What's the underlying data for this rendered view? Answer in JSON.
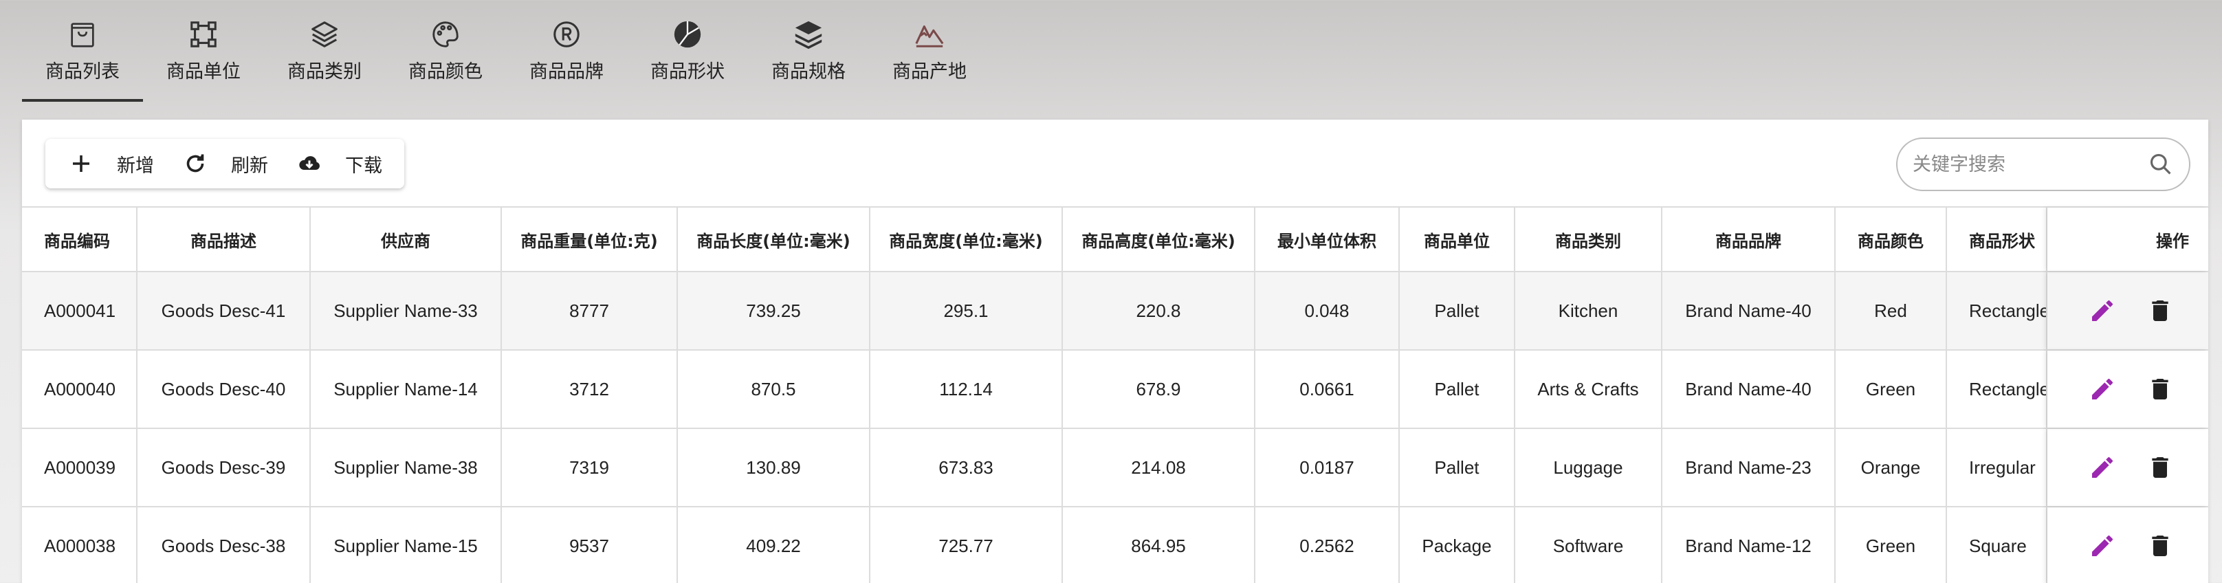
{
  "tabs": [
    {
      "label": "商品列表",
      "icon": "shopping-bag-icon",
      "active": true
    },
    {
      "label": "商品单位",
      "icon": "nodes-icon"
    },
    {
      "label": "商品类别",
      "icon": "layers-icon"
    },
    {
      "label": "商品颜色",
      "icon": "palette-icon"
    },
    {
      "label": "商品品牌",
      "icon": "registered-icon"
    },
    {
      "label": "商品形状",
      "icon": "pie-chart-icon"
    },
    {
      "label": "商品规格",
      "icon": "stack-icon"
    },
    {
      "label": "商品产地",
      "icon": "mountains-icon"
    }
  ],
  "toolbar": {
    "add_label": "新增",
    "refresh_label": "刷新",
    "download_label": "下载"
  },
  "search": {
    "placeholder": "关键字搜索"
  },
  "table": {
    "headers": [
      "商品编码",
      "商品描述",
      "供应商",
      "商品重量(单位:克)",
      "商品长度(单位:毫米)",
      "商品宽度(单位:毫米)",
      "商品高度(单位:毫米)",
      "最小单位体积",
      "商品单位",
      "商品类别",
      "商品品牌",
      "商品颜色",
      "商品形状",
      "操作"
    ],
    "rows": [
      [
        "A000041",
        "Goods Desc-41",
        "Supplier Name-33",
        "8777",
        "739.25",
        "295.1",
        "220.8",
        "0.048",
        "Pallet",
        "Kitchen",
        "Brand Name-40",
        "Red",
        "Rectangle"
      ],
      [
        "A000040",
        "Goods Desc-40",
        "Supplier Name-14",
        "3712",
        "870.5",
        "112.14",
        "678.9",
        "0.0661",
        "Pallet",
        "Arts & Crafts",
        "Brand Name-40",
        "Green",
        "Rectangle"
      ],
      [
        "A000039",
        "Goods Desc-39",
        "Supplier Name-38",
        "7319",
        "130.89",
        "673.83",
        "214.08",
        "0.0187",
        "Pallet",
        "Luggage",
        "Brand Name-23",
        "Orange",
        "Irregular"
      ],
      [
        "A000038",
        "Goods Desc-38",
        "Supplier Name-15",
        "9537",
        "409.22",
        "725.77",
        "864.95",
        "0.2562",
        "Package",
        "Software",
        "Brand Name-12",
        "Green",
        "Square"
      ]
    ]
  },
  "colors": {
    "edit": "#9c27b0",
    "delete": "#222222",
    "tab_underline": "#333333"
  }
}
